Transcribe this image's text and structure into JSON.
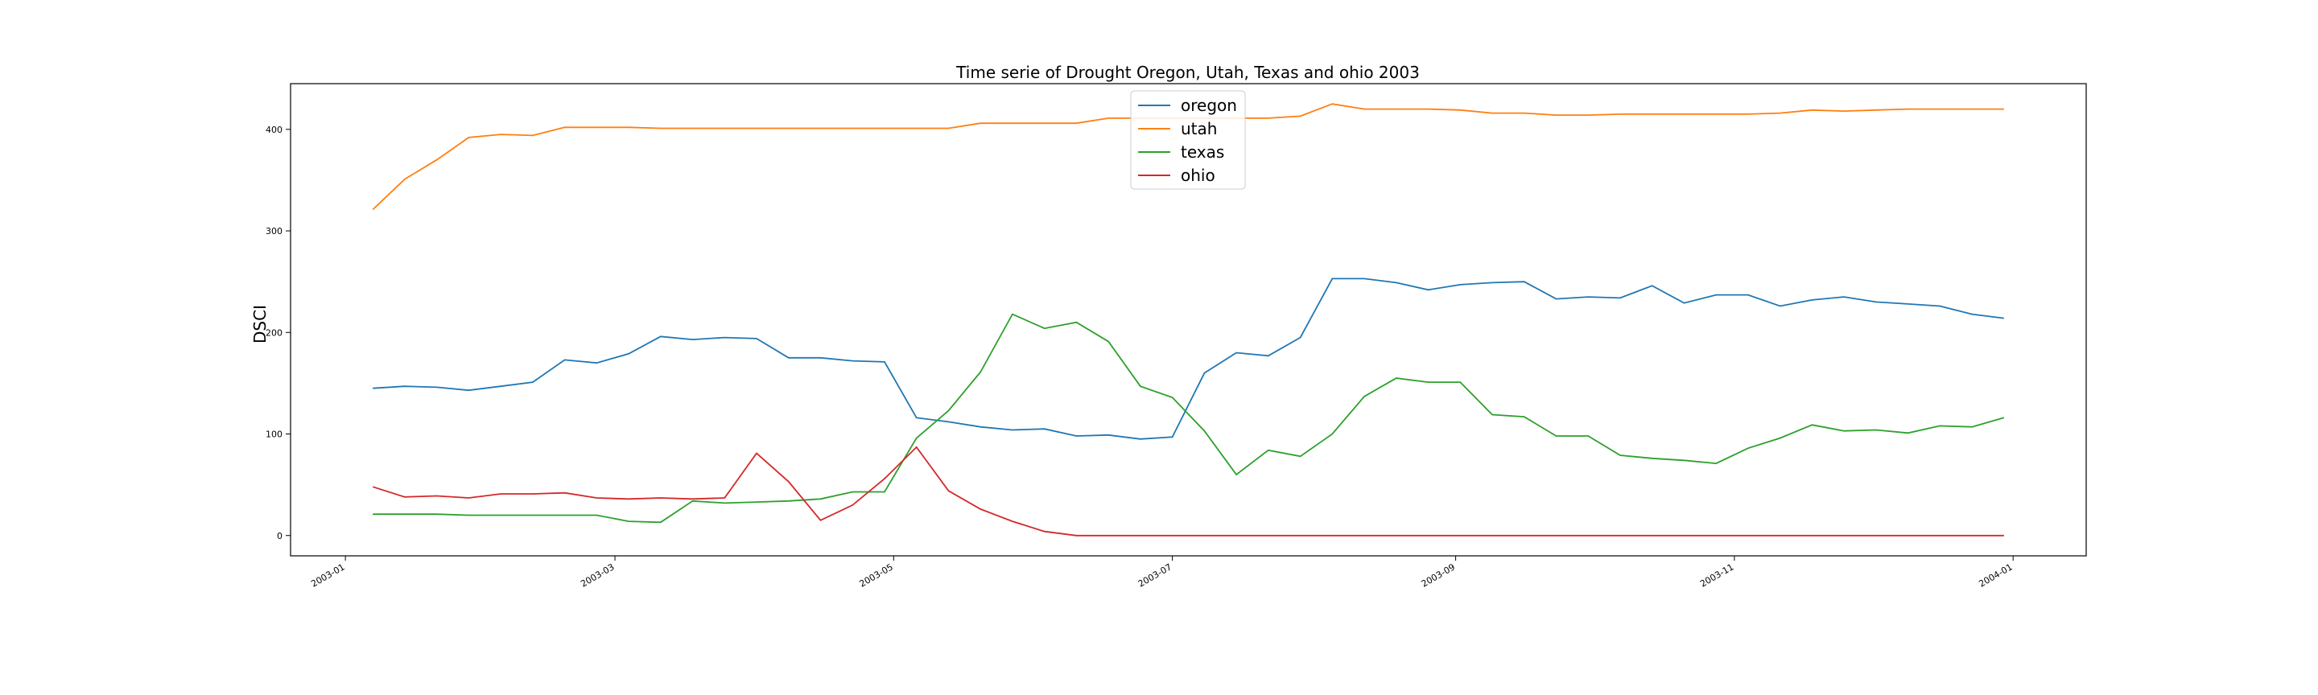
{
  "chart_data": {
    "type": "line",
    "title": "Time serie of Drought Oregon, Utah, Texas and ohio 2003",
    "xlabel": "",
    "ylabel": "DSCI",
    "ylim": [
      -20,
      445
    ],
    "yticks": [
      0,
      100,
      200,
      300,
      400
    ],
    "xticks": [
      "2003-01",
      "2003-03",
      "2003-05",
      "2003-07",
      "2003-09",
      "2003-11",
      "2004-01"
    ],
    "legend_position": "top-center",
    "grid": false,
    "x": [
      "2003-01-07",
      "2003-01-14",
      "2003-01-21",
      "2003-01-28",
      "2003-02-04",
      "2003-02-11",
      "2003-02-18",
      "2003-02-25",
      "2003-03-04",
      "2003-03-11",
      "2003-03-18",
      "2003-03-25",
      "2003-04-01",
      "2003-04-08",
      "2003-04-15",
      "2003-04-22",
      "2003-04-29",
      "2003-05-06",
      "2003-05-13",
      "2003-05-20",
      "2003-05-27",
      "2003-06-03",
      "2003-06-10",
      "2003-06-17",
      "2003-06-24",
      "2003-07-01",
      "2003-07-08",
      "2003-07-15",
      "2003-07-22",
      "2003-07-29",
      "2003-08-05",
      "2003-08-12",
      "2003-08-19",
      "2003-08-26",
      "2003-09-02",
      "2003-09-09",
      "2003-09-16",
      "2003-09-23",
      "2003-09-30",
      "2003-10-07",
      "2003-10-14",
      "2003-10-21",
      "2003-10-28",
      "2003-11-04",
      "2003-11-11",
      "2003-11-18",
      "2003-11-25",
      "2003-12-02",
      "2003-12-09",
      "2003-12-16",
      "2003-12-23",
      "2003-12-30"
    ],
    "series": [
      {
        "name": "oregon",
        "color": "#1f77b4",
        "values": [
          145,
          147,
          146,
          143,
          147,
          151,
          173,
          170,
          179,
          196,
          193,
          195,
          194,
          175,
          175,
          172,
          171,
          116,
          112,
          107,
          104,
          105,
          98,
          99,
          95,
          97,
          160,
          180,
          177,
          195,
          253,
          253,
          249,
          242,
          247,
          249,
          250,
          233,
          235,
          234,
          246,
          229,
          237,
          237,
          226,
          232,
          235,
          230,
          228,
          226,
          218,
          214
        ]
      },
      {
        "name": "utah",
        "color": "#ff7f0e",
        "values": [
          321,
          351,
          370,
          392,
          395,
          394,
          402,
          402,
          402,
          401,
          401,
          401,
          401,
          401,
          401,
          401,
          401,
          401,
          401,
          406,
          406,
          406,
          406,
          411,
          411,
          411,
          411,
          411,
          411,
          413,
          425,
          420,
          420,
          420,
          419,
          416,
          416,
          414,
          414,
          415,
          415,
          415,
          415,
          415,
          416,
          419,
          418,
          419,
          420,
          420,
          420,
          420
        ]
      },
      {
        "name": "texas",
        "color": "#2ca02c",
        "values": [
          21,
          21,
          21,
          20,
          20,
          20,
          20,
          20,
          14,
          13,
          34,
          32,
          33,
          34,
          36,
          43,
          43,
          96,
          123,
          161,
          218,
          204,
          210,
          191,
          147,
          136,
          103,
          60,
          84,
          78,
          100,
          137,
          155,
          151,
          151,
          119,
          117,
          98,
          98,
          79,
          76,
          74,
          71,
          86,
          96,
          109,
          103,
          104,
          101,
          108,
          107,
          116
        ]
      },
      {
        "name": "ohio",
        "color": "#d62728",
        "values": [
          48,
          38,
          39,
          37,
          41,
          41,
          42,
          37,
          36,
          37,
          36,
          37,
          81,
          53,
          15,
          30,
          56,
          87,
          44,
          26,
          14,
          4,
          0,
          0,
          0,
          0,
          0,
          0,
          0,
          0,
          0,
          0,
          0,
          0,
          0,
          0,
          0,
          0,
          0,
          0,
          0,
          0,
          0,
          0,
          0,
          0,
          0,
          0,
          0,
          0,
          0,
          0
        ]
      }
    ]
  }
}
